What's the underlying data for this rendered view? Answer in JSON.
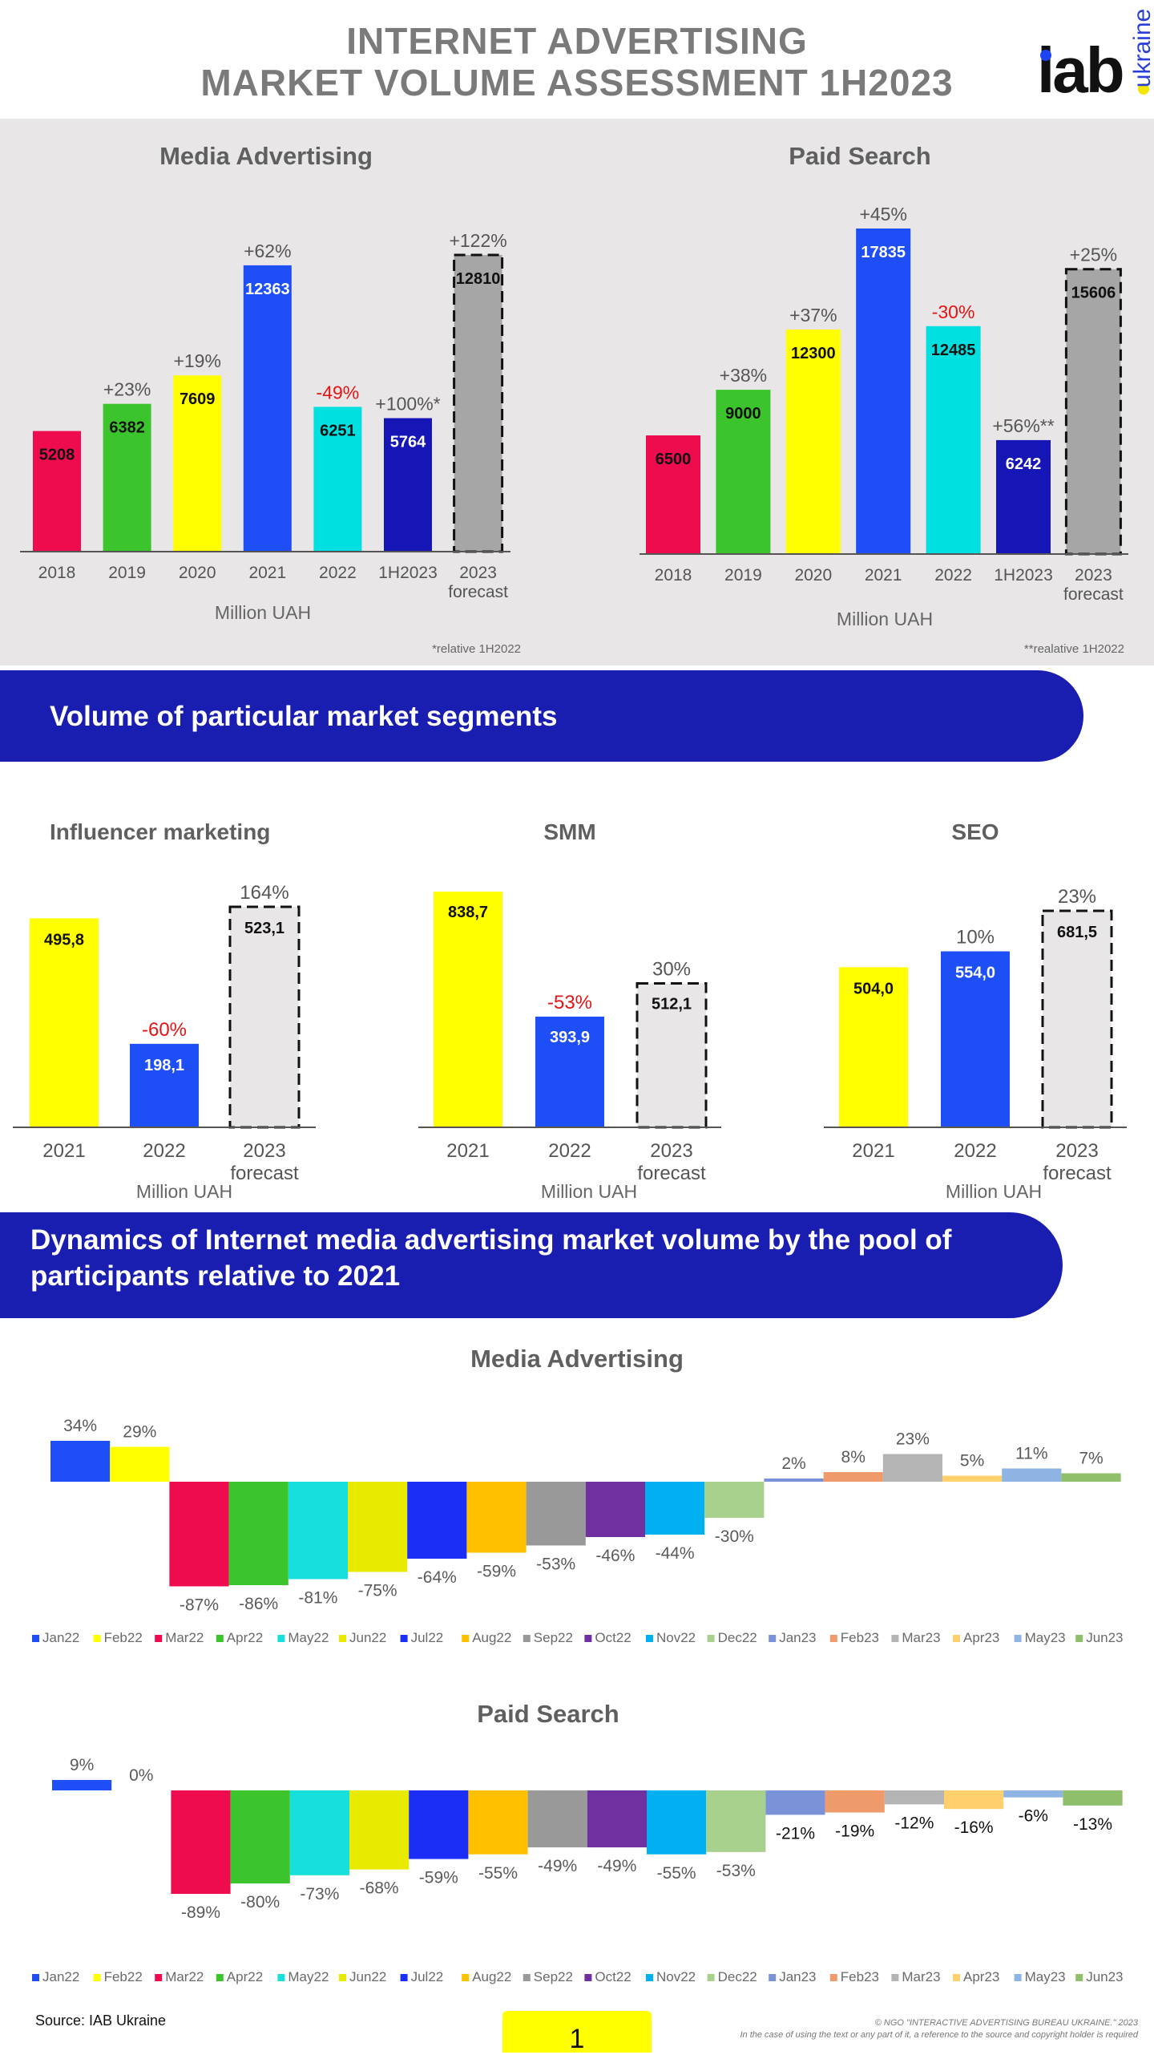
{
  "header": {
    "title_line1": "INTERNET ADVERTISING",
    "title_line2": "MARKET VOLUME ASSESSMENT 1H2023",
    "logo_text": "iab",
    "logo_sub": "ukraine"
  },
  "colors": {
    "panel_bg": "#e8e6e7",
    "banner": "#1a1eb0",
    "axis": "#555555",
    "negative": "#e31414",
    "forecast_grey": "#a6a6a6",
    "forecast_light": "#e8e6e7"
  },
  "sections": {
    "segments_banner": "Volume of particular market segments",
    "dynamics_banner_line1": "Dynamics of Internet media advertising market volume by the pool of",
    "dynamics_banner_line2": "participants relative to 2021"
  },
  "chart_data": [
    {
      "id": "media-advertising-annual",
      "type": "bar",
      "title": "Media Advertising",
      "xlabel": "Million UAH",
      "categories": [
        "2018",
        "2019",
        "2020",
        "2021",
        "2022",
        "1H2023",
        "2023\nforecast"
      ],
      "values": [
        5208,
        6382,
        7609,
        12363,
        6251,
        5764,
        12810
      ],
      "value_labels": [
        "5208",
        "6382",
        "7609",
        "12363",
        "6251",
        "5764",
        "12810"
      ],
      "change_labels": [
        "",
        "+23%",
        "+19%",
        "+62%",
        "-49%",
        "+100%*",
        "+122%"
      ],
      "colors": [
        "#ee0b4e",
        "#3bc42b",
        "#ffff00",
        "#1e4ff6",
        "#00e0e0",
        "#1616b6",
        "#a6a6a6"
      ],
      "forecast_index": 6,
      "footnote": "*relative 1H2022",
      "ylim": [
        0,
        12810
      ]
    },
    {
      "id": "paid-search-annual",
      "type": "bar",
      "title": "Paid Search",
      "xlabel": "Million UAH",
      "categories": [
        "2018",
        "2019",
        "2020",
        "2021",
        "2022",
        "1H2023",
        "2023\nforecast"
      ],
      "values": [
        6500,
        9000,
        12300,
        17835,
        12485,
        6242,
        15606
      ],
      "value_labels": [
        "6500",
        "9000",
        "12300",
        "17835",
        "12485",
        "6242",
        "15606"
      ],
      "change_labels": [
        "",
        "+38%",
        "+37%",
        "+45%",
        "-30%",
        "+56%**",
        "+25%"
      ],
      "colors": [
        "#ee0b4e",
        "#3bc42b",
        "#ffff00",
        "#1e4ff6",
        "#00e0e0",
        "#1616b6",
        "#a6a6a6"
      ],
      "forecast_index": 6,
      "footnote": "**realative 1H2022",
      "ylim": [
        0,
        17835
      ]
    },
    {
      "id": "influencer-marketing",
      "type": "bar",
      "title": "Influencer marketing",
      "xlabel": "Million UAH",
      "categories": [
        "2021",
        "2022",
        "2023\nforecast"
      ],
      "values": [
        495.8,
        198.1,
        523.1
      ],
      "value_labels": [
        "495,8",
        "198,1",
        "523,1"
      ],
      "change_labels": [
        "",
        "-60%",
        "164%"
      ],
      "colors": [
        "#ffff00",
        "#1e4ff6",
        "#e8e6e7"
      ],
      "forecast_index": 2,
      "ylim": [
        0,
        523.1
      ]
    },
    {
      "id": "smm",
      "type": "bar",
      "title": "SMM",
      "xlabel": "Million UAH",
      "categories": [
        "2021",
        "2022",
        "2023\nforecast"
      ],
      "values": [
        838.7,
        393.9,
        512.1
      ],
      "value_labels": [
        "838,7",
        "393,9",
        "512,1"
      ],
      "change_labels": [
        "",
        "-53%",
        "30%"
      ],
      "colors": [
        "#ffff00",
        "#1e4ff6",
        "#e8e6e7"
      ],
      "forecast_index": 2,
      "ylim": [
        0,
        838.7
      ]
    },
    {
      "id": "seo",
      "type": "bar",
      "title": "SEO",
      "xlabel": "Million UAH",
      "categories": [
        "2021",
        "2022",
        "2023\nforecast"
      ],
      "values": [
        504.0,
        554.0,
        681.5
      ],
      "value_labels": [
        "504,0",
        "554,0",
        "681,5"
      ],
      "change_labels": [
        "",
        "10%",
        "23%"
      ],
      "colors": [
        "#ffff00",
        "#1e4ff6",
        "#e8e6e7"
      ],
      "forecast_index": 2,
      "ylim": [
        0,
        681.5
      ]
    },
    {
      "id": "media-advertising-dynamics",
      "type": "bar",
      "title": "Media Advertising",
      "categories": [
        "Jan22",
        "Feb22",
        "Mar22",
        "Apr22",
        "May22",
        "Jun22",
        "Jul22",
        "Aug22",
        "Sep22",
        "Oct22",
        "Nov22",
        "Dec22",
        "Jan23",
        "Feb23",
        "Mar23",
        "Apr23",
        "May23",
        "Jun23"
      ],
      "values": [
        34,
        29,
        -87,
        -86,
        -81,
        -75,
        -64,
        -59,
        -53,
        -46,
        -44,
        -30,
        2,
        8,
        23,
        5,
        11,
        7
      ],
      "value_labels": [
        "34%",
        "29%",
        "-87%",
        "-86%",
        "-81%",
        "-75%",
        "-64%",
        "-59%",
        "-53%",
        "-46%",
        "-44%",
        "-30%",
        "2%",
        "8%",
        "23%",
        "5%",
        "11%",
        "7%"
      ],
      "colors": [
        "#1e4ff6",
        "#ffff00",
        "#ee0b4e",
        "#3bc42b",
        "#17e0dc",
        "#e8ea00",
        "#1a2ef5",
        "#ffc000",
        "#999999",
        "#7030a0",
        "#00b0f0",
        "#a9d18e",
        "#7a93d8",
        "#ef9a6a",
        "#b4b4b4",
        "#ffd06b",
        "#8eb4e3",
        "#8fbf6a"
      ],
      "units": "%"
    },
    {
      "id": "paid-search-dynamics",
      "type": "bar",
      "title": "Paid Search",
      "categories": [
        "Jan22",
        "Feb22",
        "Mar22",
        "Apr22",
        "May22",
        "Jun22",
        "Jul22",
        "Aug22",
        "Sep22",
        "Oct22",
        "Nov22",
        "Dec22",
        "Jan23",
        "Feb23",
        "Mar23",
        "Apr23",
        "May23",
        "Jun23"
      ],
      "values": [
        9,
        0,
        -89,
        -80,
        -73,
        -68,
        -59,
        -55,
        -49,
        -49,
        -55,
        -53,
        -21,
        -19,
        -12,
        -16,
        -6,
        -13
      ],
      "value_labels": [
        "9%",
        "0%",
        "-89%",
        "-80%",
        "-73%",
        "-68%",
        "-59%",
        "-55%",
        "-49%",
        "-49%",
        "-55%",
        "-53%",
        "-21%",
        "-19%",
        "-12%",
        "-16%",
        "-6%",
        "-13%"
      ],
      "colors": [
        "#1e4ff6",
        "#ffff00",
        "#ee0b4e",
        "#3bc42b",
        "#17e0dc",
        "#e8ea00",
        "#1a2ef5",
        "#ffc000",
        "#999999",
        "#7030a0",
        "#00b0f0",
        "#a9d18e",
        "#7a93d8",
        "#ef9a6a",
        "#b4b4b4",
        "#ffd06b",
        "#8eb4e3",
        "#8fbf6a"
      ],
      "units": "%"
    }
  ],
  "footer": {
    "source": "Source: IAB Ukraine",
    "page_number": "1",
    "copyright_line1": "© NGO \"INTERACTIVE ADVERTISING BUREAU UKRAINE.\" 2023",
    "copyright_line2": "In the case of using the text or any part of it, a reference to the source and copyright holder is required"
  }
}
